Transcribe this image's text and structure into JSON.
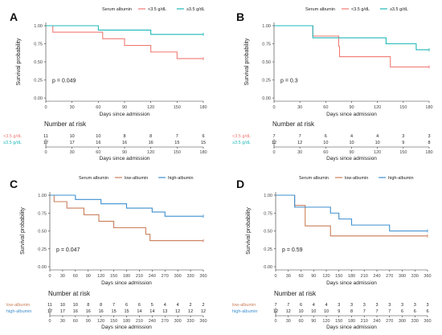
{
  "colors": {
    "low": "#f07a73",
    "high": "#1fb8b8",
    "low2": "#c97f5a",
    "high2": "#3d8fcf",
    "axis": "#333333"
  },
  "chart_data": [
    {
      "id": "A",
      "panel_label": "A",
      "type": "line",
      "legend_title": "Serum albumin",
      "ylabel": "Survival probability",
      "xlabel": "Days since admission",
      "xlim": [
        0,
        180
      ],
      "ylim": [
        0,
        1
      ],
      "x_ticks": [
        "0",
        "30",
        "60",
        "90",
        "120",
        "150",
        "180"
      ],
      "y_ticks": [
        "0.00",
        "0.25",
        "0.50",
        "0.75",
        "1.00"
      ],
      "pvalue": "p = 0.049",
      "risk_title": "Number at risk",
      "series": [
        {
          "name": "<3.5 g/dL",
          "color": "low",
          "steps": [
            [
              0,
              1.0
            ],
            [
              8,
              0.91
            ],
            [
              65,
              0.82
            ],
            [
              90,
              0.727
            ],
            [
              120,
              0.636
            ],
            [
              150,
              0.545
            ],
            [
              180,
              0.545
            ]
          ],
          "risk": [
            "11",
            "10",
            "10",
            "8",
            "8",
            "7",
            "6"
          ]
        },
        {
          "name": "≥3.5 g/dL",
          "color": "high",
          "steps": [
            [
              0,
              1.0
            ],
            [
              60,
              0.94
            ],
            [
              120,
              0.88
            ],
            [
              180,
              0.88
            ]
          ],
          "risk": [
            "17",
            "17",
            "16",
            "16",
            "16",
            "15",
            "15"
          ]
        }
      ]
    },
    {
      "id": "B",
      "panel_label": "B",
      "type": "line",
      "legend_title": "Serum albumin",
      "ylabel": "Survival probability",
      "xlabel": "Days since admission",
      "xlim": [
        0,
        180
      ],
      "ylim": [
        0,
        1
      ],
      "x_ticks": [
        "0",
        "30",
        "60",
        "90",
        "120",
        "150",
        "180"
      ],
      "y_ticks": [
        "0.00",
        "0.25",
        "0.50",
        "0.75",
        "1.00"
      ],
      "pvalue": "p = 0.3",
      "risk_title": "Number at risk",
      "series": [
        {
          "name": "<3.5 g/dL",
          "color": "low",
          "steps": [
            [
              0,
              1.0
            ],
            [
              45,
              0.857
            ],
            [
              75,
              0.714
            ],
            [
              76,
              0.571
            ],
            [
              135,
              0.43
            ],
            [
              180,
              0.43
            ]
          ],
          "risk": [
            "7",
            "7",
            "6",
            "4",
            "4",
            "3",
            "3"
          ]
        },
        {
          "name": "≥3.5 g/dL",
          "color": "high",
          "steps": [
            [
              0,
              1.0
            ],
            [
              45,
              0.833
            ],
            [
              130,
              0.75
            ],
            [
              165,
              0.667
            ],
            [
              180,
              0.667
            ]
          ],
          "risk": [
            "12",
            "12",
            "10",
            "10",
            "10",
            "9",
            "8"
          ]
        }
      ]
    },
    {
      "id": "C",
      "panel_label": "C",
      "type": "line",
      "legend_title": "Serum albumin",
      "ylabel": "Survival probability",
      "xlabel": "Days since admission",
      "xlim": [
        0,
        360
      ],
      "ylim": [
        0,
        1
      ],
      "x_ticks": [
        "0",
        "30",
        "60",
        "90",
        "120",
        "150",
        "180",
        "210",
        "240",
        "270",
        "300",
        "330",
        "360"
      ],
      "y_ticks": [
        "0.00",
        "0.25",
        "0.50",
        "0.75",
        "1.00"
      ],
      "pvalue": "p = 0.047",
      "risk_title": "Number at risk",
      "series": [
        {
          "name": "low-albumin",
          "color": "low2",
          "steps": [
            [
              0,
              1.0
            ],
            [
              10,
              0.91
            ],
            [
              40,
              0.82
            ],
            [
              80,
              0.727
            ],
            [
              115,
              0.636
            ],
            [
              150,
              0.545
            ],
            [
              225,
              0.455
            ],
            [
              235,
              0.364
            ],
            [
              360,
              0.364
            ]
          ],
          "risk": [
            "11",
            "10",
            "10",
            "8",
            "8",
            "7",
            "6",
            "6",
            "5",
            "4",
            "4",
            "2",
            "2"
          ]
        },
        {
          "name": "high-albumin",
          "color": "high2",
          "steps": [
            [
              0,
              1.0
            ],
            [
              60,
              0.94
            ],
            [
              120,
              0.88
            ],
            [
              180,
              0.82
            ],
            [
              240,
              0.765
            ],
            [
              270,
              0.706
            ],
            [
              360,
              0.706
            ]
          ],
          "risk": [
            "17",
            "17",
            "16",
            "16",
            "16",
            "15",
            "15",
            "14",
            "14",
            "13",
            "12",
            "12",
            "12"
          ]
        }
      ]
    },
    {
      "id": "D",
      "panel_label": "D",
      "type": "line",
      "legend_title": "Serum albumin",
      "ylabel": "Survival probability",
      "xlabel": "Days since admission",
      "xlim": [
        0,
        360
      ],
      "ylim": [
        0,
        1
      ],
      "x_ticks": [
        "0",
        "30",
        "60",
        "90",
        "120",
        "150",
        "180",
        "210",
        "240",
        "270",
        "300",
        "330",
        "360"
      ],
      "y_ticks": [
        "0.00",
        "0.25",
        "0.50",
        "0.75",
        "1.00"
      ],
      "pvalue": "p = 0.59",
      "risk_title": "Number at risk",
      "series": [
        {
          "name": "low-albumin",
          "color": "low2",
          "steps": [
            [
              0,
              1.0
            ],
            [
              45,
              0.857
            ],
            [
              70,
              0.571
            ],
            [
              130,
              0.43
            ],
            [
              360,
              0.43
            ]
          ],
          "risk": [
            "7",
            "7",
            "6",
            "4",
            "4",
            "3",
            "3",
            "3",
            "3",
            "3",
            "3",
            "3",
            "3"
          ]
        },
        {
          "name": "high-albumin",
          "color": "high2",
          "steps": [
            [
              0,
              1.0
            ],
            [
              45,
              0.833
            ],
            [
              130,
              0.75
            ],
            [
              150,
              0.667
            ],
            [
              180,
              0.583
            ],
            [
              270,
              0.5
            ],
            [
              360,
              0.5
            ]
          ],
          "risk": [
            "12",
            "12",
            "10",
            "10",
            "10",
            "9",
            "8",
            "7",
            "7",
            "7",
            "6",
            "6",
            "6"
          ]
        }
      ]
    }
  ]
}
